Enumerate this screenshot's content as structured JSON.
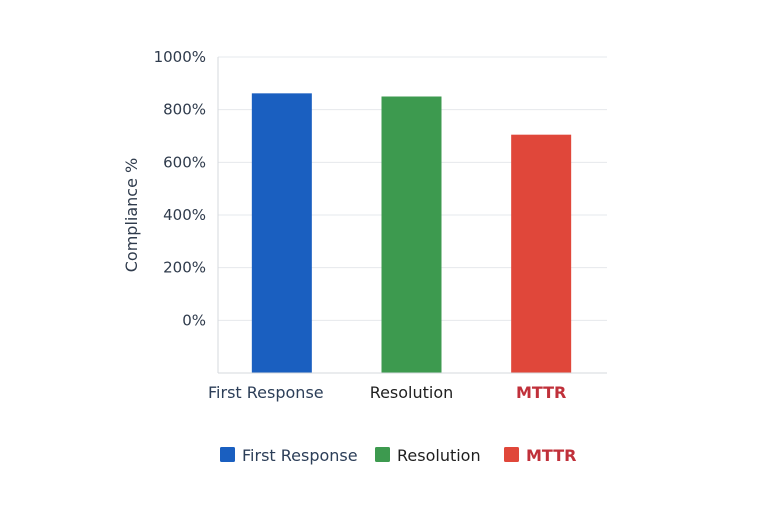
{
  "chart_data": {
    "type": "bar",
    "ylabel": "Compliance %",
    "categories": [
      "First Response",
      "Resolution",
      "MTTR"
    ],
    "values": [
      862,
      850,
      705
    ],
    "colors": [
      "#1a5fc0",
      "#3d9a4f",
      "#e0473a"
    ],
    "category_label_colors": [
      "#2c3e58",
      "#1f1f1f",
      "#c0303a"
    ],
    "category_label_bold": [
      false,
      false,
      true
    ],
    "yticks": [
      0,
      200,
      400,
      600,
      800,
      1000
    ],
    "ytick_labels": [
      "0%",
      "200%",
      "400%",
      "600%",
      "800%",
      "1000%"
    ],
    "ylim": [
      -200,
      1000
    ],
    "grid": true,
    "legend": {
      "position": "bottom",
      "items": [
        {
          "label": "First Response",
          "color": "#1a5fc0",
          "text_color": "#2c3e58",
          "bold": false
        },
        {
          "label": "Resolution",
          "color": "#3d9a4f",
          "text_color": "#1f1f1f",
          "bold": false
        },
        {
          "label": "MTTR",
          "color": "#e0473a",
          "text_color": "#c0303a",
          "bold": true
        }
      ]
    }
  }
}
